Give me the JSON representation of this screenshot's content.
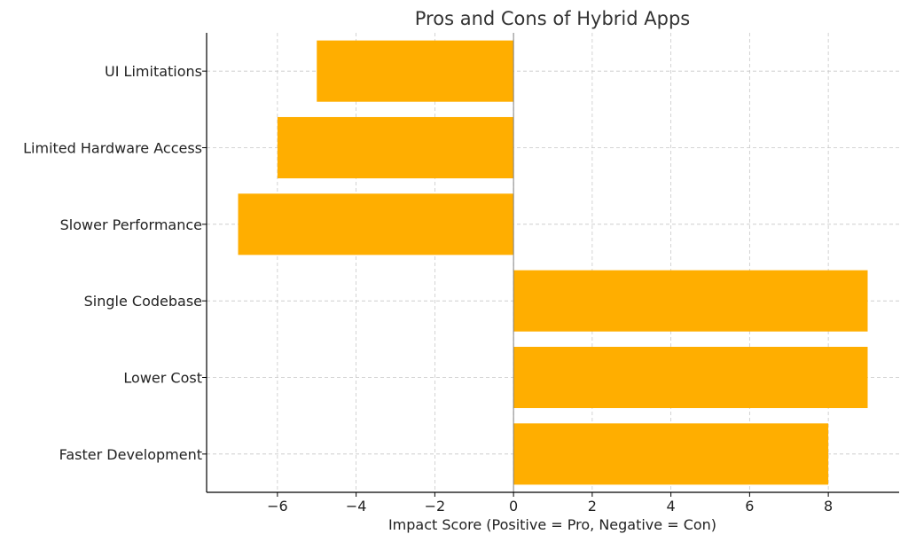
{
  "chart_data": {
    "type": "bar",
    "orientation": "horizontal",
    "title": "Pros and Cons of Hybrid Apps",
    "xlabel": "Impact Score (Positive = Pro, Negative = Con)",
    "ylabel": "",
    "categories": [
      "Faster Development",
      "Lower Cost",
      "Single Codebase",
      "Slower Performance",
      "Limited Hardware Access",
      "UI Limitations"
    ],
    "values": [
      8,
      9,
      9,
      -7,
      -6,
      -5
    ],
    "xlim": [
      -7.8,
      9.8
    ],
    "xticks": [
      -6,
      -4,
      -2,
      0,
      2,
      4,
      6,
      8
    ],
    "xtick_labels": [
      "−6",
      "−4",
      "−2",
      "0",
      "2",
      "4",
      "6",
      "8"
    ],
    "grid": true,
    "bar_color": "#ffae00",
    "zero_line_color": "#808080"
  }
}
